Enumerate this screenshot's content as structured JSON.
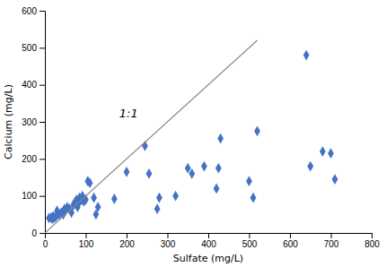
{
  "chart_data": {
    "type": "scatter",
    "xlabel": "Sulfate (mg/L)",
    "ylabel": "Calcium (mg/L)",
    "series": [
      {
        "type": "scatter",
        "color": "#4472C4",
        "marker": "diamond",
        "x": [
          10,
          15,
          18,
          20,
          22,
          25,
          28,
          30,
          35,
          40,
          45,
          48,
          50,
          55,
          60,
          65,
          70,
          72,
          75,
          78,
          80,
          82,
          85,
          88,
          90,
          92,
          95,
          100,
          105,
          110,
          120,
          125,
          130,
          170,
          200,
          245,
          255,
          275,
          280,
          320,
          350,
          360,
          390,
          420,
          425,
          430,
          500,
          510,
          520,
          640,
          650,
          680,
          700,
          710
        ],
        "values": [
          40,
          42,
          38,
          45,
          40,
          43,
          45,
          60,
          50,
          55,
          50,
          65,
          60,
          70,
          65,
          55,
          75,
          80,
          85,
          90,
          70,
          80,
          95,
          88,
          92,
          100,
          85,
          90,
          140,
          135,
          95,
          50,
          70,
          92,
          165,
          235,
          160,
          65,
          95,
          100,
          175,
          160,
          180,
          120,
          175,
          255,
          140,
          95,
          275,
          480,
          180,
          220,
          215,
          145
        ]
      },
      {
        "type": "line",
        "color": "#888888",
        "x": [
          0,
          520
        ],
        "values": [
          0,
          520
        ]
      }
    ],
    "annotations": [
      {
        "text": "1:1",
        "x": 205,
        "y": 320
      }
    ],
    "xlim": [
      0,
      800
    ],
    "ylim": [
      0,
      600
    ],
    "xticks": [
      0,
      100,
      200,
      300,
      400,
      500,
      600,
      700,
      800
    ],
    "yticks": [
      0,
      100,
      200,
      300,
      400,
      500,
      600
    ]
  }
}
